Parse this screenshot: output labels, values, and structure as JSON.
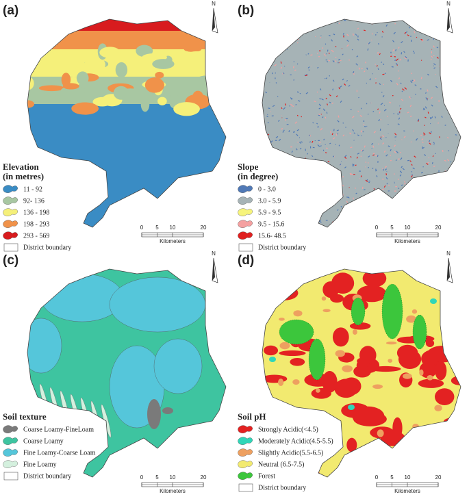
{
  "panels": [
    {
      "label": "(a)",
      "legend_title": [
        "Elevation",
        "(in metres)"
      ],
      "legend": [
        {
          "label": "11 - 92",
          "color": "#3a8cc4"
        },
        {
          "label": "92- 136",
          "color": "#a8c7a2"
        },
        {
          "label": "136 - 198",
          "color": "#f5f07a"
        },
        {
          "label": "198 - 293",
          "color": "#f0924a"
        },
        {
          "label": "293 - 569",
          "color": "#d81b1e"
        }
      ],
      "boundary_label": "District boundary",
      "scale": {
        "ticks": [
          0,
          5,
          10,
          20
        ],
        "unit": "Kilometers"
      },
      "north": "N"
    },
    {
      "label": "(b)",
      "legend_title": [
        "Slope",
        "(in degree)"
      ],
      "legend": [
        {
          "label": "0 - 3.0",
          "color": "#5079b6"
        },
        {
          "label": "3.0 - 5.9",
          "color": "#a6b3b6"
        },
        {
          "label": "5.9 - 9.5",
          "color": "#f6f47c"
        },
        {
          "label": "9.5 - 15.6",
          "color": "#f4a0a0"
        },
        {
          "label": "15.6- 48.5",
          "color": "#e02020"
        }
      ],
      "boundary_label": "District boundary",
      "scale": {
        "ticks": [
          0,
          5,
          10,
          20
        ],
        "unit": "Kilometers"
      },
      "north": "N"
    },
    {
      "label": "(c)",
      "legend_title": [
        "Soil texture"
      ],
      "legend": [
        {
          "label": "Coarse Loamy-FineLoam",
          "color": "#7a7a7a"
        },
        {
          "label": "Coarse Loamy",
          "color": "#3ec4a0"
        },
        {
          "label": "Fine Loamy-Coarse Loam",
          "color": "#55c6da"
        },
        {
          "label": "Fine Loamy",
          "color": "#d4f0de"
        }
      ],
      "boundary_label": "District boundary",
      "scale": {
        "ticks": [
          0,
          5,
          10,
          20
        ],
        "unit": "Kilometers"
      },
      "north": "N"
    },
    {
      "label": "(d)",
      "legend_title": [
        "Soil pH"
      ],
      "legend": [
        {
          "label": "Strongly Acidic(<4.5)",
          "color": "#e32222"
        },
        {
          "label": "Moderately Acidic(4.5-5.5)",
          "color": "#30d6b8"
        },
        {
          "label": "Slightly Acidic(5.5-6.5)",
          "color": "#eea060"
        },
        {
          "label": "Neutral (6.5-7.5)",
          "color": "#f2ea70"
        },
        {
          "label": "Forest",
          "color": "#3cc63c"
        }
      ],
      "boundary_label": "District boundary",
      "scale": {
        "ticks": [
          0,
          5,
          10,
          20
        ],
        "unit": "Kilometers"
      },
      "north": "N"
    }
  ]
}
